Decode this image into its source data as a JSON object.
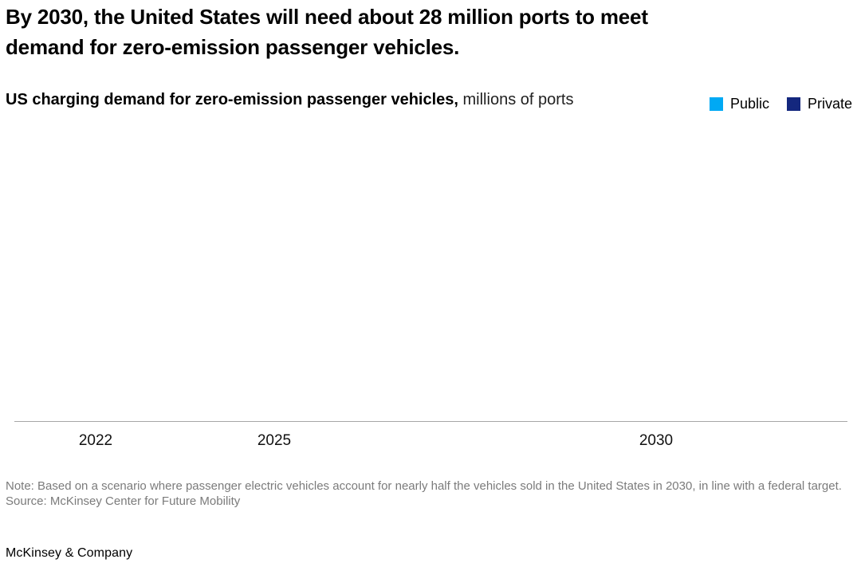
{
  "page": {
    "background": "#ffffff",
    "headline": "By 2030, the United States will need about 28 million ports to meet\ndemand for zero-emission passenger vehicles.",
    "footer_brand": "McKinsey & Company"
  },
  "chart_header": {
    "title_bold": "US charging demand for zero-emission passenger vehicles,",
    "title_units": " millions of ports"
  },
  "legend": {
    "items": [
      {
        "label": "Public",
        "color": "#00A9F4"
      },
      {
        "label": "Private",
        "color": "#14277E"
      }
    ]
  },
  "axis": {
    "line_color": "#a6a6a6",
    "tick_label_color": "#111111"
  },
  "footnotes": {
    "note": "Note: Based on a scenario where passenger electric vehicles account for nearly half the vehicles sold in the United States in 2030, in line with a federal target.",
    "source": "Source: McKinsey Center for Future Mobility"
  },
  "chart_data": {
    "type": "bar",
    "title": "US charging demand for zero-emission passenger vehicles",
    "units": "millions of ports",
    "categories": [
      "2022",
      "2025",
      "2030"
    ],
    "series": [
      {
        "name": "Public",
        "color": "#00A9F4",
        "values": []
      },
      {
        "name": "Private",
        "color": "#14277E",
        "values": []
      }
    ],
    "headline_value_context": "about 28 million ports needed by 2030",
    "legend_position": "top-right",
    "grid": false,
    "plot_area_empty_in_screenshot": true
  }
}
